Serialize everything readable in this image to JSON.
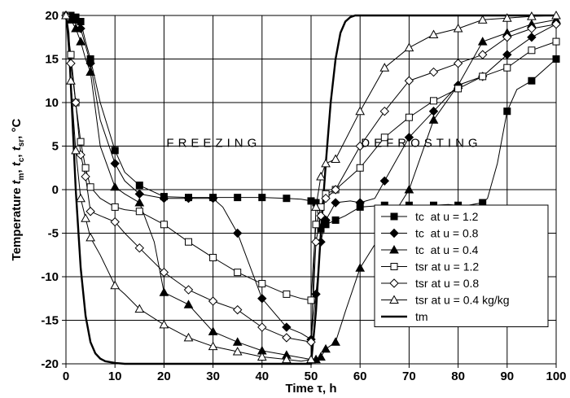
{
  "chart_data": {
    "type": "line",
    "title": "",
    "xlabel": "Time τ, h",
    "ylabel": "Temperature tm, tc, tsr, °C",
    "ylabel_parts": [
      "Temperature ",
      "t",
      "m",
      ", ",
      "t",
      "c",
      ", ",
      "t",
      "sr",
      ", °C"
    ],
    "xlim": [
      0,
      100
    ],
    "ylim": [
      -20,
      20
    ],
    "x_ticks": [
      "0",
      "10",
      "20",
      "30",
      "40",
      "50",
      "60",
      "70",
      "80",
      "90",
      "100"
    ],
    "y_ticks": [
      "-20",
      "-15",
      "-10",
      "-5",
      "0",
      "5",
      "10",
      "15",
      "20"
    ],
    "grid": true,
    "legend_position": "bottom-right",
    "annotations": [
      "FREEZING",
      "DEFROSTING"
    ],
    "series": [
      {
        "name": "tc  at u = 1.2",
        "marker": "square-filled",
        "markers_x": [
          0,
          1,
          2,
          3,
          5,
          10,
          15,
          20,
          25,
          30,
          35,
          40,
          45,
          50,
          51,
          52,
          53,
          55,
          60,
          65,
          70,
          75,
          80,
          85,
          90,
          95,
          100
        ],
        "x": [
          0,
          1,
          2,
          3,
          4,
          5,
          7,
          10,
          12,
          15,
          20,
          25,
          30,
          35,
          40,
          45,
          48,
          50,
          51,
          52,
          53,
          55,
          57,
          60,
          65,
          70,
          75,
          78,
          80,
          82,
          85,
          86,
          88,
          90,
          92,
          95,
          100
        ],
        "y": [
          20,
          20,
          19.8,
          19.3,
          17,
          15,
          10,
          4.5,
          2,
          0.5,
          -0.8,
          -0.9,
          -0.9,
          -0.9,
          -0.9,
          -1,
          -1.1,
          -1.3,
          -1.5,
          -4.5,
          -4,
          -3.5,
          -3,
          -2,
          -1.8,
          -1.8,
          -1.8,
          -1.7,
          -1.8,
          -1.8,
          -1.5,
          -1,
          3,
          9,
          11.5,
          12.5,
          15
        ]
      },
      {
        "name": "tc  at u = 0.8",
        "marker": "diamond-filled",
        "markers_x": [
          0,
          1,
          2,
          3,
          5,
          10,
          15,
          20,
          25,
          30,
          35,
          40,
          45,
          50,
          51,
          52,
          53,
          55,
          60,
          65,
          70,
          75,
          80,
          85,
          90,
          95,
          100
        ],
        "x": [
          0,
          1,
          2,
          3,
          4,
          5,
          7,
          10,
          12,
          15,
          20,
          25,
          30,
          32,
          35,
          40,
          45,
          48,
          50,
          51,
          52,
          53,
          55,
          58,
          60,
          63,
          65,
          70,
          75,
          80,
          85,
          90,
          95,
          100
        ],
        "y": [
          20,
          19.8,
          19.5,
          18.5,
          16.5,
          14.5,
          8,
          3,
          1,
          -0.5,
          -1,
          -1,
          -1,
          -2,
          -5,
          -12.5,
          -15.8,
          -16.5,
          -17.2,
          -12,
          -6,
          -3.5,
          -1.5,
          -1.3,
          -1.5,
          -1,
          1,
          6,
          9,
          12,
          13,
          15.5,
          17.5,
          19
        ]
      },
      {
        "name": "tc  at u = 0.4",
        "marker": "triangle-filled",
        "markers_x": [
          0,
          1,
          2,
          3,
          5,
          10,
          15,
          20,
          25,
          30,
          35,
          40,
          45,
          50,
          51,
          52,
          53,
          55,
          60,
          65,
          70,
          75,
          80,
          85,
          90,
          95,
          100
        ],
        "x": [
          0,
          1,
          2,
          3,
          4,
          5,
          7,
          10,
          12,
          15,
          18,
          20,
          25,
          30,
          35,
          40,
          45,
          48,
          50,
          51,
          52,
          53,
          55,
          57,
          60,
          65,
          70,
          75,
          80,
          85,
          90,
          95,
          100
        ],
        "y": [
          20,
          19.5,
          18.5,
          17,
          15,
          13.5,
          5,
          0.3,
          -0.5,
          -1.5,
          -6,
          -11.8,
          -13.2,
          -16.3,
          -17.5,
          -18.5,
          -19,
          -19.3,
          -19.5,
          -19.5,
          -19.2,
          -18.3,
          -17.5,
          -14,
          -9,
          -4.5,
          0,
          8,
          12,
          17,
          18,
          19,
          19.5
        ]
      },
      {
        "name": "tsr at u = 1.2",
        "marker": "square-open",
        "markers_x": [
          0,
          1,
          2,
          3,
          4,
          5,
          10,
          15,
          20,
          25,
          30,
          35,
          40,
          45,
          50,
          51,
          52,
          53,
          55,
          60,
          65,
          70,
          75,
          80,
          85,
          90,
          95,
          100
        ],
        "x": [
          0,
          1,
          2,
          3,
          4,
          5,
          7,
          10,
          12,
          15,
          20,
          25,
          30,
          35,
          40,
          45,
          48,
          50,
          50.5,
          51,
          52,
          53,
          55,
          60,
          65,
          70,
          75,
          80,
          85,
          90,
          95,
          100
        ],
        "y": [
          20,
          15.5,
          10,
          5.5,
          2.5,
          0.3,
          -1,
          -2,
          -2.3,
          -2.5,
          -4,
          -6,
          -7.8,
          -9.5,
          -10.8,
          -12,
          -12.5,
          -12.7,
          -8,
          -4,
          -2,
          -0.5,
          0,
          2.5,
          6,
          8.3,
          10.2,
          11.6,
          13,
          14,
          16,
          17
        ]
      },
      {
        "name": "tsr at u = 0.8",
        "marker": "diamond-open",
        "markers_x": [
          0,
          1,
          2,
          3,
          4,
          5,
          10,
          15,
          20,
          25,
          30,
          35,
          40,
          45,
          50,
          51,
          52,
          53,
          55,
          60,
          65,
          70,
          75,
          80,
          85,
          90,
          95,
          100
        ],
        "x": [
          0,
          1,
          2,
          3,
          4,
          5,
          7,
          10,
          12,
          15,
          20,
          25,
          30,
          35,
          40,
          45,
          48,
          50,
          50.5,
          51,
          52,
          53,
          55,
          60,
          65,
          70,
          75,
          80,
          85,
          90,
          95,
          100
        ],
        "y": [
          20,
          14.5,
          10,
          4,
          1.5,
          -2.5,
          -3,
          -3.7,
          -5,
          -6.7,
          -9.5,
          -11.5,
          -12.8,
          -13.8,
          -15.8,
          -17,
          -17.3,
          -17.5,
          -12,
          -6,
          -3,
          -1,
          0,
          5,
          9,
          12.5,
          13.5,
          14.5,
          15.5,
          17.5,
          18.5,
          19
        ]
      },
      {
        "name": "tsr at u = 0.4 kg/kg",
        "marker": "triangle-open",
        "markers_x": [
          0,
          1,
          2,
          3,
          4,
          5,
          10,
          15,
          20,
          25,
          30,
          35,
          40,
          45,
          50,
          51,
          52,
          53,
          55,
          60,
          65,
          70,
          75,
          80,
          85,
          90,
          95,
          100
        ],
        "x": [
          0,
          1,
          2,
          3,
          4,
          5,
          7,
          10,
          12,
          15,
          20,
          25,
          30,
          35,
          40,
          45,
          48,
          50,
          50.5,
          51,
          52,
          53,
          55,
          60,
          65,
          70,
          75,
          80,
          85,
          90,
          95,
          100
        ],
        "y": [
          20,
          12.5,
          4.5,
          -1,
          -3.3,
          -5.5,
          -7.5,
          -11,
          -12,
          -13.7,
          -15.5,
          -17,
          -18,
          -18.6,
          -19.2,
          -19.5,
          -19.7,
          -19.5,
          -10,
          -2,
          1.5,
          3,
          3.5,
          9,
          14,
          16.3,
          17.8,
          18.5,
          19.5,
          19.7,
          19.9,
          20
        ]
      },
      {
        "name": "tm",
        "marker": "none",
        "x": [
          0,
          0.5,
          1,
          1.5,
          2,
          3,
          4,
          5,
          6,
          7,
          8,
          10,
          12,
          15,
          20,
          30,
          40,
          50,
          51,
          52,
          53,
          54,
          55,
          56,
          57,
          58,
          59,
          60,
          65,
          70,
          80,
          90,
          100
        ],
        "y": [
          20,
          18,
          12,
          6,
          0,
          -9,
          -14.5,
          -17.5,
          -18.8,
          -19.4,
          -19.7,
          -19.9,
          -20,
          -20,
          -20,
          -20,
          -20,
          -20,
          -14,
          -5,
          3,
          10,
          15,
          18,
          19.3,
          19.8,
          20,
          20,
          20,
          20,
          20,
          20,
          20
        ]
      }
    ]
  }
}
